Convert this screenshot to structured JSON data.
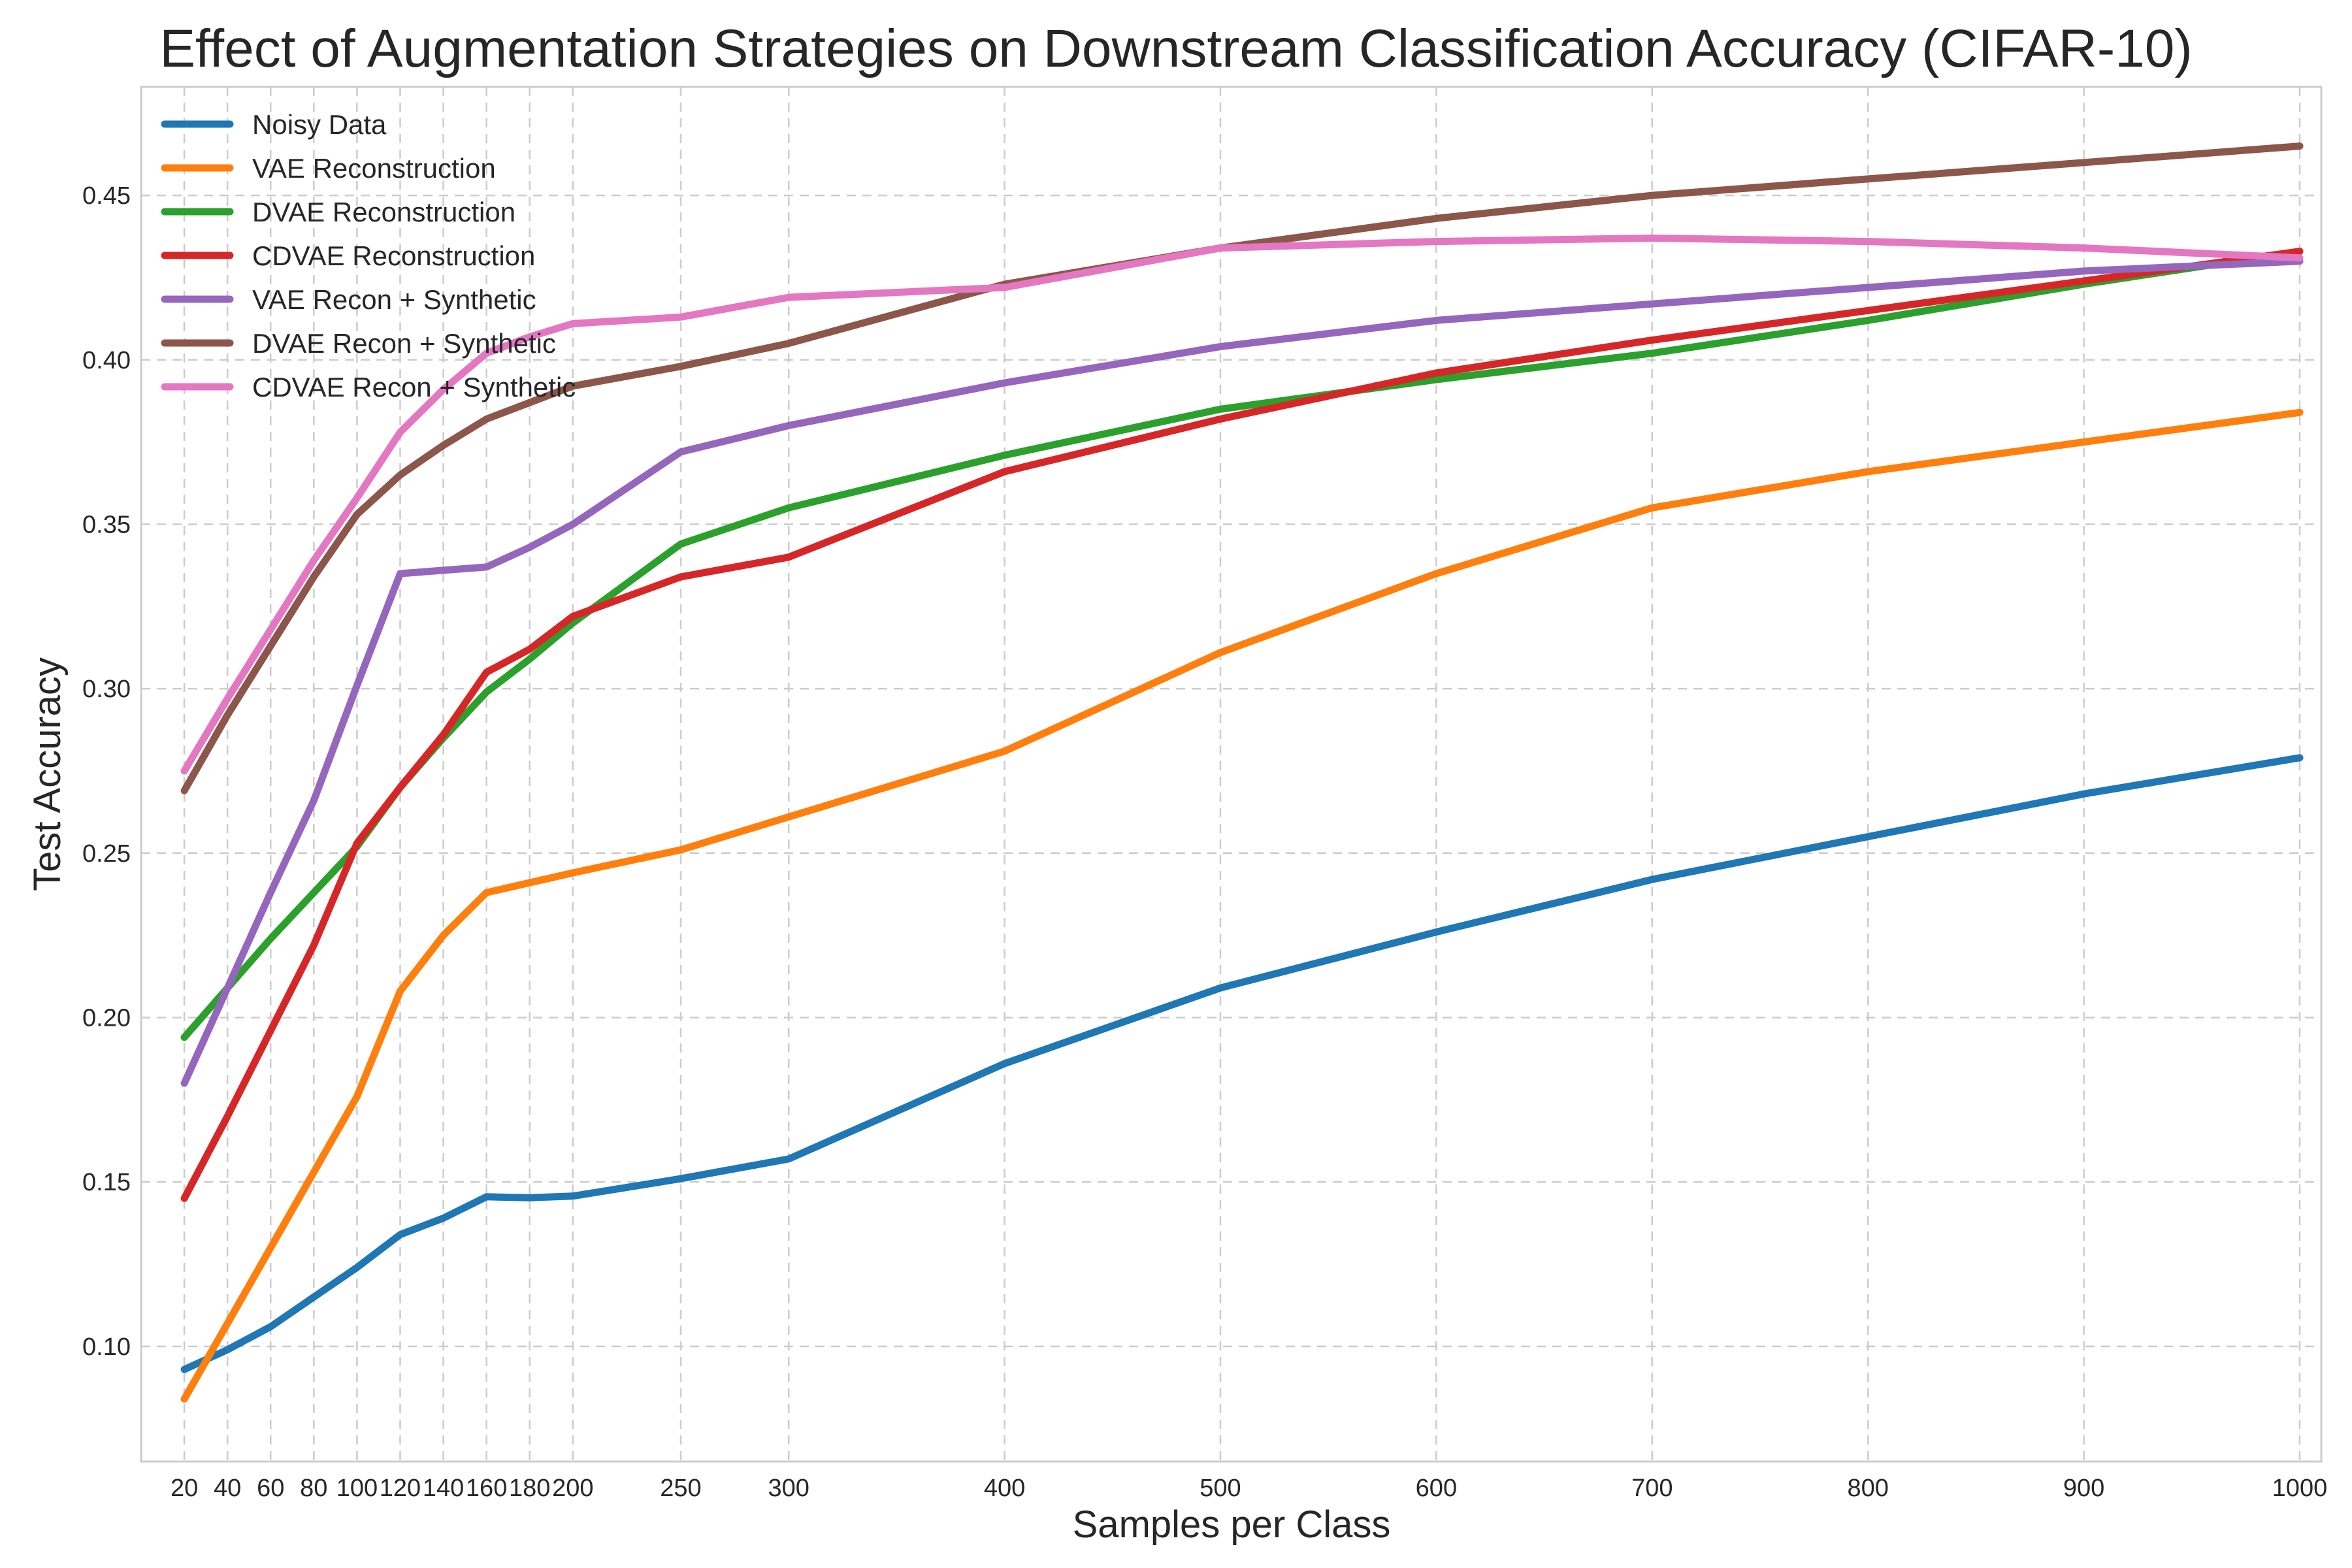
{
  "chart_data": {
    "type": "line",
    "title": "Effect of Augmentation Strategies on Downstream Classification Accuracy (CIFAR-10)",
    "xlabel": "Samples per Class",
    "ylabel": "Test Accuracy",
    "x": [
      20,
      40,
      60,
      80,
      100,
      120,
      140,
      160,
      180,
      200,
      250,
      300,
      400,
      500,
      600,
      700,
      800,
      900,
      1000
    ],
    "xticks": [
      20,
      40,
      60,
      80,
      100,
      120,
      140,
      160,
      180,
      200,
      250,
      300,
      400,
      500,
      600,
      700,
      800,
      900,
      1000
    ],
    "yticks": [
      0.1,
      0.15,
      0.2,
      0.25,
      0.3,
      0.35,
      0.4,
      0.45
    ],
    "ytick_labels": [
      "0.10",
      "0.15",
      "0.20",
      "0.25",
      "0.30",
      "0.35",
      "0.40",
      "0.45"
    ],
    "xlim": [
      0,
      1010
    ],
    "ylim": [
      0.065,
      0.483
    ],
    "grid": true,
    "legend_position": "upper-left",
    "series": [
      {
        "name": "Noisy Data",
        "color": "#1f77b4",
        "values": [
          0.093,
          0.099,
          0.106,
          0.115,
          0.124,
          0.134,
          0.139,
          0.1455,
          0.1452,
          0.1457,
          0.151,
          0.157,
          0.186,
          0.209,
          0.226,
          0.242,
          0.255,
          0.268,
          0.279
        ]
      },
      {
        "name": "VAE Reconstruction",
        "color": "#ff7f0e",
        "values": [
          0.084,
          0.107,
          0.13,
          0.153,
          0.176,
          0.208,
          0.225,
          0.238,
          0.241,
          0.244,
          0.251,
          0.261,
          0.281,
          0.311,
          0.335,
          0.355,
          0.366,
          0.375,
          0.384
        ]
      },
      {
        "name": "DVAE Reconstruction",
        "color": "#2ca02c",
        "values": [
          0.194,
          0.209,
          0.224,
          0.238,
          0.252,
          0.27,
          0.285,
          0.299,
          0.309,
          0.32,
          0.344,
          0.355,
          0.371,
          0.385,
          0.394,
          0.402,
          0.412,
          0.423,
          0.433
        ]
      },
      {
        "name": "CDVAE Reconstruction",
        "color": "#d62728",
        "values": [
          0.145,
          0.17,
          0.196,
          0.222,
          0.253,
          0.27,
          0.286,
          0.305,
          0.312,
          0.322,
          0.334,
          0.34,
          0.366,
          0.382,
          0.396,
          0.406,
          0.415,
          0.424,
          0.433
        ]
      },
      {
        "name": "VAE Recon + Synthetic",
        "color": "#9467bd",
        "values": [
          0.18,
          0.209,
          0.238,
          0.266,
          0.301,
          0.335,
          0.336,
          0.337,
          0.343,
          0.35,
          0.372,
          0.38,
          0.393,
          0.404,
          0.412,
          0.417,
          0.422,
          0.427,
          0.43
        ]
      },
      {
        "name": "DVAE Recon + Synthetic",
        "color": "#8c564b",
        "values": [
          0.269,
          0.292,
          0.313,
          0.334,
          0.353,
          0.365,
          0.374,
          0.382,
          0.387,
          0.392,
          0.398,
          0.405,
          0.423,
          0.434,
          0.443,
          0.45,
          0.455,
          0.46,
          0.465
        ]
      },
      {
        "name": "CDVAE Recon + Synthetic",
        "color": "#e377c2",
        "values": [
          0.275,
          0.297,
          0.318,
          0.339,
          0.358,
          0.378,
          0.391,
          0.402,
          0.407,
          0.411,
          0.413,
          0.419,
          0.422,
          0.434,
          0.436,
          0.437,
          0.436,
          0.434,
          0.431
        ]
      }
    ]
  }
}
